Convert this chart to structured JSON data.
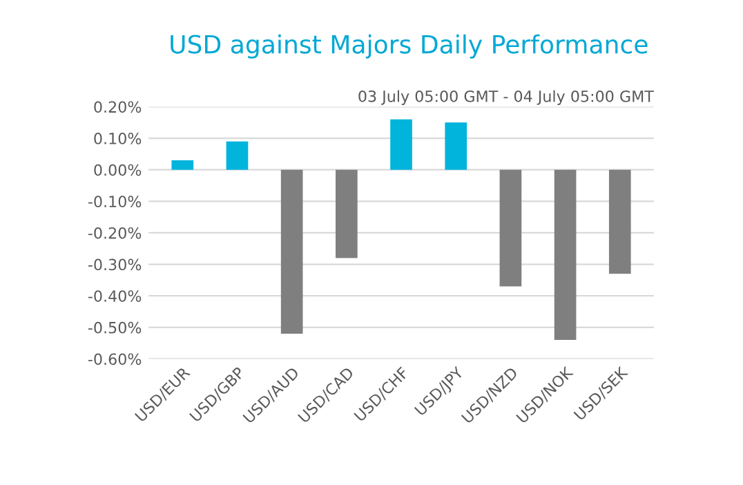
{
  "chart_data": {
    "type": "bar",
    "title": "USD against Majors Daily Performance",
    "subtitle": "03 July 05:00 GMT - 04 July 05:00 GMT",
    "categories": [
      "USD/EUR",
      "USD/GBP",
      "USD/AUD",
      "USD/CAD",
      "USD/CHF",
      "USD/JPY",
      "USD/NZD",
      "USD/NOK",
      "USD/SEK"
    ],
    "values": [
      0.03,
      0.09,
      -0.52,
      -0.28,
      0.16,
      0.15,
      -0.37,
      -0.54,
      -0.33
    ],
    "colors": [
      "#00b4dc",
      "#00b4dc",
      "#7f7f7f",
      "#7f7f7f",
      "#00b4dc",
      "#00b4dc",
      "#7f7f7f",
      "#7f7f7f",
      "#7f7f7f"
    ],
    "ylim": [
      -0.6,
      0.2
    ],
    "yticks": [
      {
        "value": -0.6,
        "label": "-0.60%"
      },
      {
        "value": -0.5,
        "label": "-0.50%"
      },
      {
        "value": -0.4,
        "label": "-0.40%"
      },
      {
        "value": -0.3,
        "label": "-0.30%"
      },
      {
        "value": -0.2,
        "label": "-0.20%"
      },
      {
        "value": -0.1,
        "label": "-0.10%"
      },
      {
        "value": 0,
        "label": "0.00%"
      },
      {
        "value": 0.1,
        "label": "0.10%"
      },
      {
        "value": 0.2,
        "label": "0.20%"
      }
    ],
    "grid": "y",
    "legend": false
  }
}
